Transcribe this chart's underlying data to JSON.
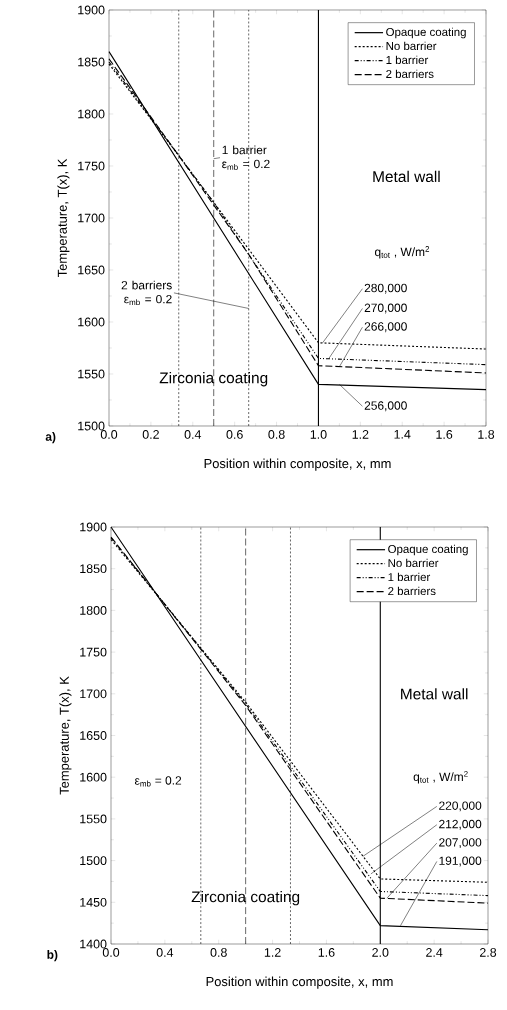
{
  "chart_data": [
    {
      "type": "line",
      "xlabel": "Position within composite, x, mm",
      "ylabel": "Temperature, T(x), K",
      "xlim": [
        0,
        1.8
      ],
      "ylim": [
        1500,
        1900
      ],
      "xticks": [
        {
          "value": 0,
          "label": "0.0"
        },
        0.2,
        0.4,
        0.6,
        0.8,
        {
          "value": 1,
          "label": "1.0"
        },
        1.2,
        1.4,
        1.6,
        1.8
      ],
      "yticks": [
        1500,
        1550,
        1600,
        1650,
        1700,
        1750,
        1800,
        1850,
        1900
      ],
      "grid": false,
      "legend": "top right",
      "marker": "none",
      "series": [
        {
          "name": "Opaque coating",
          "color": "#000000",
          "line_style": "solid",
          "x": [
            0,
            1.0,
            1.8
          ],
          "values": [
            1860,
            1540,
            1535
          ]
        },
        {
          "name": "No barrier",
          "color": "#000000",
          "line_style": "dotted",
          "x": [
            0,
            0.333,
            0.667,
            1.0,
            1.8
          ],
          "values": [
            1848,
            1760,
            1670,
            1580,
            1574
          ]
        },
        {
          "name": "1 barrier",
          "color": "#000000",
          "line_style": "dashdot",
          "x": [
            0,
            0.5,
            1.0,
            1.8
          ],
          "values": [
            1850,
            1715,
            1565,
            1559
          ]
        },
        {
          "name": "2 barriers",
          "color": "#000000",
          "line_style": "dashed",
          "x": [
            0,
            0.333,
            0.667,
            1.0,
            1.8
          ],
          "values": [
            1853,
            1760,
            1665,
            1558,
            1551
          ]
        }
      ],
      "ref_lines": [
        {
          "axis": "x",
          "value": 0.333,
          "color": "#000000",
          "line_style": "dotted"
        },
        {
          "axis": "x",
          "value": 0.5,
          "color": "#000000",
          "line_style": "dashed"
        },
        {
          "axis": "x",
          "value": 0.667,
          "color": "#000000",
          "line_style": "dotted"
        },
        {
          "axis": "x",
          "value": 1.0,
          "color": "#000000",
          "line_style": "solid"
        }
      ],
      "annotations": [
        {
          "text": "1 barrier ε$_{mb}$ = 0.2",
          "x": 0.5,
          "y": 1757
        },
        {
          "text": "2 barriers ε$_{mb}$ = 0.2",
          "x": 0.667,
          "y": 1613
        },
        "Zirconia coating",
        "Metal wall",
        "q$_{tot}$ , W/m$^{2}$",
        {
          "text": "280,000",
          "x": 1.02,
          "y": 1580
        },
        {
          "text": "270,000",
          "x": 1.05,
          "y": 1565
        },
        {
          "text": "266,000",
          "x": 1.1,
          "y": 1557
        },
        {
          "text": "256,000",
          "x": 1.1,
          "y": 1540
        },
        "a)"
      ]
    },
    {
      "type": "line",
      "xlabel": "Position within composite, x, mm",
      "ylabel": "Temperature, T(x), K",
      "xlim": [
        0,
        2.8
      ],
      "ylim": [
        1400,
        1900
      ],
      "xticks": [
        {
          "value": 0,
          "label": "0.0"
        },
        0.4,
        0.8,
        1.2,
        1.6,
        {
          "value": 2,
          "label": "2.0"
        },
        2.4,
        2.8
      ],
      "yticks": [
        1400,
        1450,
        1500,
        1550,
        1600,
        1650,
        1700,
        1750,
        1800,
        1850,
        1900
      ],
      "grid": false,
      "legend": "top right",
      "marker": "none",
      "series": [
        {
          "name": "Opaque coating",
          "color": "#000000",
          "line_style": "solid",
          "x": [
            0,
            2.0,
            2.8
          ],
          "values": [
            1900,
            1422,
            1417
          ]
        },
        {
          "name": "No barrier",
          "color": "#000000",
          "line_style": "dotted",
          "x": [
            0,
            1.0,
            2.0,
            2.8
          ],
          "values": [
            1885,
            1690,
            1478,
            1474
          ]
        },
        {
          "name": "1 barrier",
          "color": "#000000",
          "line_style": "dashdot",
          "x": [
            0,
            1.0,
            2.0,
            2.8
          ],
          "values": [
            1887,
            1688,
            1463,
            1458
          ]
        },
        {
          "name": "2 barriers",
          "color": "#000000",
          "line_style": "dashed",
          "x": [
            0,
            1.0,
            2.0,
            2.8
          ],
          "values": [
            1888,
            1686,
            1455,
            1449
          ]
        }
      ],
      "ref_lines": [
        {
          "axis": "x",
          "value": 0.667,
          "color": "#000000",
          "line_style": "dotted"
        },
        {
          "axis": "x",
          "value": 1.0,
          "color": "#000000",
          "line_style": "dashed"
        },
        {
          "axis": "x",
          "value": 1.333,
          "color": "#000000",
          "line_style": "dotted"
        },
        {
          "axis": "x",
          "value": 2.0,
          "color": "#000000",
          "line_style": "solid"
        }
      ],
      "annotations": [
        "ε$_{mb}$ = 0.2",
        "Zirconia coating",
        "Metal wall",
        "q$_{tot}$ , W/m$^{2}$",
        {
          "text": "220,000",
          "x": 1.87,
          "y": 1505
        },
        {
          "text": "212,000",
          "x": 1.93,
          "y": 1484
        },
        {
          "text": "207,000",
          "x": 2.05,
          "y": 1455
        },
        {
          "text": "191,000",
          "x": 2.15,
          "y": 1422
        },
        "b)"
      ]
    }
  ]
}
